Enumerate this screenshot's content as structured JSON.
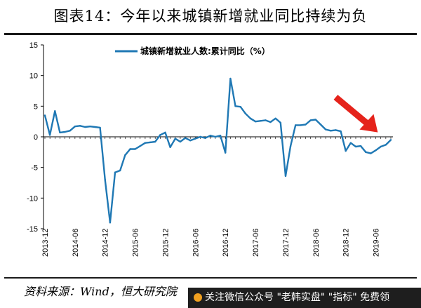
{
  "header": {
    "title": "图表14：今年以来城镇新增就业同比持续为负"
  },
  "footer": {
    "source": "资料来源：Wind，恒大研究院",
    "watermark": "关注微信公众号 \"老韩实盘\" \"指标\" 免费领"
  },
  "colors": {
    "line": "#1f78b4",
    "arrow": "#e5231b"
  },
  "chart_data": {
    "type": "line",
    "title": "",
    "xlabel": "",
    "ylabel": "",
    "ylim": [
      -15,
      15
    ],
    "yticks": [
      15,
      10,
      5,
      0,
      -5,
      -10,
      -15
    ],
    "grid": false,
    "legend_position": "top",
    "xtick_labels": [
      "2013-12",
      "2014-06",
      "2014-12",
      "2015-06",
      "2015-12",
      "2016-06",
      "2016-12",
      "2017-06",
      "2017-12",
      "2018-06",
      "2018-12",
      "2019-06"
    ],
    "annotations": [
      {
        "type": "arrow",
        "color": "#e5231b",
        "points_to": "2019-05"
      }
    ],
    "series": [
      {
        "name": "城镇新增就业人数:累计同比（%）",
        "x": [
          "2013-12",
          "2014-01",
          "2014-02",
          "2014-03",
          "2014-04",
          "2014-05",
          "2014-06",
          "2014-07",
          "2014-08",
          "2014-09",
          "2014-10",
          "2014-11",
          "2014-12",
          "2015-01",
          "2015-02",
          "2015-03",
          "2015-04",
          "2015-05",
          "2015-06",
          "2015-07",
          "2015-08",
          "2015-09",
          "2015-10",
          "2015-11",
          "2015-12",
          "2016-01",
          "2016-02",
          "2016-03",
          "2016-04",
          "2016-05",
          "2016-06",
          "2016-07",
          "2016-08",
          "2016-09",
          "2016-10",
          "2016-11",
          "2016-12",
          "2017-01",
          "2017-02",
          "2017-03",
          "2017-04",
          "2017-05",
          "2017-06",
          "2017-07",
          "2017-08",
          "2017-09",
          "2017-10",
          "2017-11",
          "2017-12",
          "2018-01",
          "2018-02",
          "2018-03",
          "2018-04",
          "2018-05",
          "2018-06",
          "2018-07",
          "2018-08",
          "2018-09",
          "2018-10",
          "2018-11",
          "2018-12",
          "2019-01",
          "2019-02",
          "2019-03",
          "2019-04",
          "2019-05",
          "2019-06",
          "2019-07",
          "2019-08",
          "2019-09"
        ],
        "values": [
          3.5,
          0.3,
          4.2,
          0.7,
          0.8,
          1.0,
          1.7,
          1.8,
          1.6,
          1.7,
          1.6,
          1.5,
          -7.0,
          -14.0,
          -5.8,
          -5.5,
          -3.0,
          -2.0,
          -2.0,
          -1.5,
          -1.0,
          -0.9,
          -0.8,
          0.3,
          0.7,
          -1.7,
          -0.3,
          -0.8,
          -0.2,
          -0.6,
          -0.3,
          0.0,
          -0.2,
          0.2,
          0.0,
          0.2,
          -2.6,
          9.5,
          5.0,
          4.9,
          3.8,
          3.0,
          2.5,
          2.6,
          2.7,
          2.4,
          3.0,
          2.3,
          -6.4,
          -1.5,
          1.9,
          1.9,
          2.0,
          2.7,
          2.8,
          2.0,
          1.2,
          1.0,
          1.1,
          0.9,
          -2.3,
          -1.0,
          -1.6,
          -1.5,
          -2.5,
          -2.7,
          -2.2,
          -1.6,
          -1.3,
          -0.5
        ]
      }
    ]
  }
}
